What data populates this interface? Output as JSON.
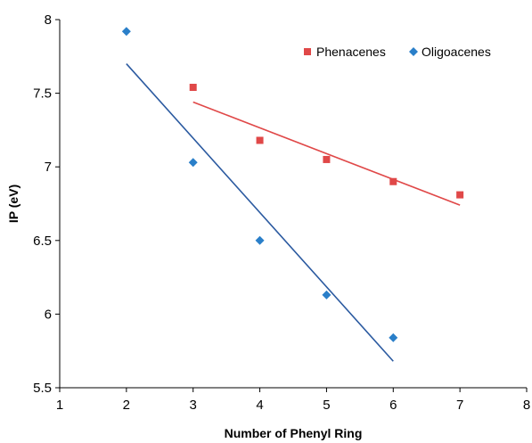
{
  "chart_data": {
    "type": "scatter",
    "title": "",
    "xlabel": "Number of Phenyl Ring",
    "ylabel": "IP (eV)",
    "xlim": [
      1,
      8
    ],
    "ylim": [
      5.5,
      8
    ],
    "xticks": [
      "1",
      "2",
      "3",
      "4",
      "5",
      "6",
      "7",
      "8"
    ],
    "yticks": [
      "5.5",
      "6",
      "6.5",
      "7",
      "7.5",
      "8"
    ],
    "grid": false,
    "legend_position": "top-right",
    "series": [
      {
        "name": "Phenacenes",
        "marker": "square",
        "color": "#e04848",
        "points": [
          {
            "x": 3,
            "y": 7.54
          },
          {
            "x": 4,
            "y": 7.18
          },
          {
            "x": 5,
            "y": 7.05
          },
          {
            "x": 6,
            "y": 6.9
          },
          {
            "x": 7,
            "y": 6.81
          }
        ],
        "trendline": {
          "x": [
            3,
            7
          ],
          "y": [
            7.44,
            6.74
          ]
        }
      },
      {
        "name": "Oligoacenes",
        "marker": "diamond",
        "color": "#2a7fc9",
        "line_color": "#2b5aa0",
        "points": [
          {
            "x": 2,
            "y": 7.92
          },
          {
            "x": 3,
            "y": 7.03
          },
          {
            "x": 4,
            "y": 6.5
          },
          {
            "x": 5,
            "y": 6.13
          },
          {
            "x": 6,
            "y": 5.84
          }
        ],
        "trendline": {
          "x": [
            2,
            6
          ],
          "y": [
            7.7,
            5.68
          ]
        }
      }
    ]
  }
}
